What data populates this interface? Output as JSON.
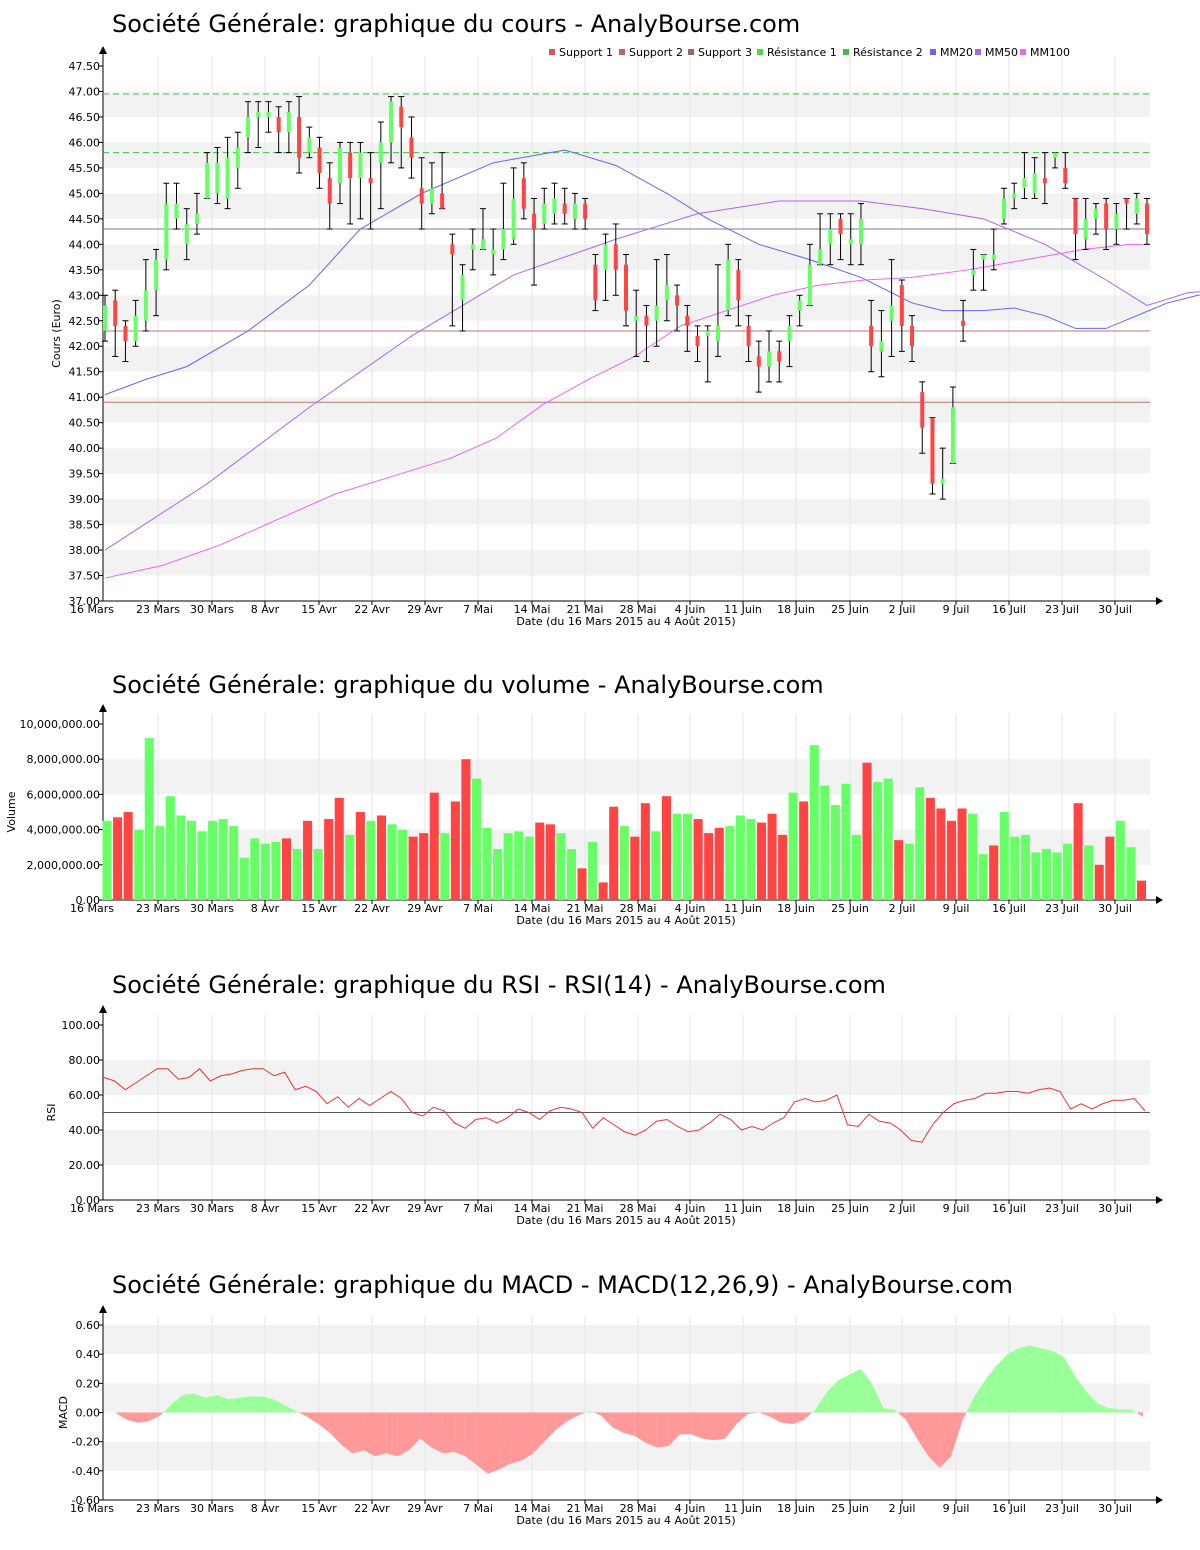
{
  "charts_meta": {
    "axis_xlabel": "Date (du 16 Mars 2015 au 4 Août 2015)",
    "date_ticks": [
      "16 Mars",
      "23 Mars",
      "30 Mars",
      "8 Avr",
      "15 Avr",
      "22 Avr",
      "29 Avr",
      "7 Mai",
      "14 Mai",
      "21 Mai",
      "28 Mai",
      "4 Juin",
      "11 Juin",
      "18 Juin",
      "25 Juin",
      "2 Juil",
      "9 Juil",
      "16 Juil",
      "23 Juil",
      "30 Juil"
    ],
    "up_color": "#66ff66",
    "down_color": "#ff4444"
  },
  "chart_data": [
    {
      "type": "candlestick",
      "title": "Société Générale: graphique du cours - AnalyBourse.com",
      "ylabel": "Cours (Euro)",
      "xlabel": "Date (du 16 Mars 2015 au 4 Août 2015)",
      "ylim": [
        37.0,
        47.5
      ],
      "yticks": [
        "37.00",
        "37.50",
        "38.00",
        "38.50",
        "39.00",
        "39.50",
        "40.00",
        "40.50",
        "41.00",
        "41.50",
        "42.00",
        "42.50",
        "43.00",
        "43.50",
        "44.00",
        "44.50",
        "45.00",
        "45.50",
        "46.00",
        "46.50",
        "47.00",
        "47.50"
      ],
      "legend": [
        "Support 1",
        "Support 2",
        "Support 3",
        "Résistance 1",
        "Résistance 2",
        "MM20",
        "MM50",
        "MM100"
      ],
      "legend_colors": [
        "#dd5555",
        "#bb6666",
        "#996666",
        "#44dd44",
        "#44bb44",
        "#6666ee",
        "#aa66ee",
        "#ee66ee"
      ],
      "levels": {
        "support1": 42.3,
        "support2": 40.9,
        "resistance1": 44.3,
        "resistance2": 45.8,
        "resistance3": 46.95
      },
      "candles": [
        [
          42.3,
          42.8,
          43.0,
          42.1
        ],
        [
          42.9,
          42.4,
          43.1,
          41.8
        ],
        [
          42.4,
          42.1,
          42.5,
          41.7
        ],
        [
          42.1,
          42.6,
          42.9,
          42.0
        ],
        [
          42.5,
          43.1,
          43.7,
          42.3
        ],
        [
          43.1,
          43.7,
          43.9,
          42.6
        ],
        [
          43.7,
          44.8,
          45.2,
          43.5
        ],
        [
          44.5,
          44.8,
          45.2,
          44.3
        ],
        [
          44.0,
          44.4,
          44.7,
          43.7
        ],
        [
          44.4,
          44.6,
          45.0,
          44.2
        ],
        [
          44.9,
          45.6,
          45.8,
          44.9
        ],
        [
          45.0,
          45.6,
          45.9,
          44.8
        ],
        [
          44.9,
          45.7,
          46.1,
          44.7
        ],
        [
          45.5,
          45.9,
          46.2,
          45.1
        ],
        [
          46.1,
          46.5,
          46.8,
          45.8
        ],
        [
          46.5,
          46.6,
          46.8,
          45.9
        ],
        [
          46.5,
          46.6,
          46.8,
          46.2
        ],
        [
          46.5,
          46.2,
          46.7,
          45.8
        ],
        [
          46.2,
          46.6,
          46.8,
          45.8
        ],
        [
          46.5,
          45.7,
          46.9,
          45.4
        ],
        [
          45.8,
          46.1,
          46.3,
          45.7
        ],
        [
          45.9,
          45.4,
          46.1,
          45.1
        ],
        [
          45.3,
          44.8,
          45.6,
          44.3
        ],
        [
          45.2,
          45.9,
          46.0,
          44.8
        ],
        [
          45.8,
          45.3,
          46.0,
          44.4
        ],
        [
          45.3,
          45.8,
          46.0,
          44.5
        ],
        [
          45.3,
          45.2,
          45.8,
          44.3
        ],
        [
          45.6,
          46.0,
          46.4,
          44.7
        ],
        [
          46.0,
          46.8,
          46.9,
          45.6
        ],
        [
          46.7,
          46.3,
          46.9,
          45.5
        ],
        [
          46.1,
          45.7,
          46.5,
          45.3
        ],
        [
          45.1,
          44.8,
          45.7,
          44.3
        ],
        [
          44.8,
          45.1,
          45.6,
          44.6
        ],
        [
          45.0,
          44.7,
          45.8,
          44.7
        ],
        [
          44.0,
          43.8,
          44.2,
          42.4
        ],
        [
          42.9,
          43.4,
          43.6,
          42.3
        ],
        [
          43.9,
          44.0,
          44.3,
          43.5
        ],
        [
          43.9,
          44.1,
          44.7,
          43.9
        ],
        [
          43.8,
          43.9,
          44.3,
          43.4
        ],
        [
          43.9,
          44.3,
          45.2,
          43.7
        ],
        [
          44.1,
          44.9,
          45.5,
          44.0
        ],
        [
          45.3,
          44.7,
          45.6,
          44.5
        ],
        [
          44.6,
          44.3,
          44.9,
          43.2
        ],
        [
          44.4,
          44.8,
          45.1,
          44.3
        ],
        [
          44.6,
          44.9,
          45.2,
          44.4
        ],
        [
          44.8,
          44.6,
          45.1,
          44.4
        ],
        [
          44.5,
          44.8,
          45.0,
          44.3
        ],
        [
          44.8,
          44.5,
          44.9,
          44.3
        ],
        [
          43.6,
          42.9,
          43.8,
          42.7
        ],
        [
          43.5,
          44.0,
          44.2,
          42.9
        ],
        [
          44.0,
          43.5,
          44.4,
          43.0
        ],
        [
          43.6,
          42.7,
          43.8,
          42.4
        ],
        [
          42.5,
          42.6,
          43.1,
          41.8
        ],
        [
          42.6,
          42.4,
          42.8,
          41.7
        ],
        [
          42.5,
          42.8,
          43.7,
          42.0
        ],
        [
          42.9,
          43.2,
          43.8,
          42.5
        ],
        [
          43.0,
          42.8,
          43.2,
          42.3
        ],
        [
          42.6,
          42.4,
          42.8,
          41.9
        ],
        [
          42.2,
          42.0,
          42.4,
          41.7
        ],
        [
          42.2,
          42.3,
          42.4,
          41.3
        ],
        [
          42.1,
          42.4,
          43.6,
          41.8
        ],
        [
          42.7,
          43.7,
          44.0,
          42.6
        ],
        [
          43.5,
          42.9,
          43.7,
          42.4
        ],
        [
          42.4,
          42.0,
          42.6,
          41.7
        ],
        [
          41.8,
          41.6,
          42.1,
          41.1
        ],
        [
          41.6,
          41.9,
          42.3,
          41.3
        ],
        [
          41.9,
          41.7,
          42.1,
          41.3
        ],
        [
          42.1,
          42.4,
          42.6,
          41.6
        ],
        [
          42.7,
          42.9,
          43.0,
          42.4
        ],
        [
          42.8,
          43.6,
          44.0,
          42.8
        ],
        [
          43.6,
          43.9,
          44.6,
          43.6
        ],
        [
          44.0,
          44.3,
          44.6,
          43.6
        ],
        [
          44.5,
          44.2,
          44.6,
          43.7
        ],
        [
          44.0,
          44.1,
          44.6,
          43.6
        ],
        [
          44.0,
          44.5,
          44.8,
          43.6
        ],
        [
          42.4,
          42.0,
          42.9,
          41.5
        ],
        [
          41.9,
          42.1,
          42.7,
          41.4
        ],
        [
          42.5,
          42.8,
          43.7,
          41.8
        ],
        [
          43.2,
          42.4,
          43.3,
          41.9
        ],
        [
          42.4,
          42.0,
          42.6,
          41.7
        ],
        [
          41.1,
          40.4,
          41.3,
          39.9
        ],
        [
          40.6,
          39.3,
          40.6,
          39.1
        ],
        [
          39.3,
          39.4,
          40.0,
          39.0
        ],
        [
          39.7,
          40.8,
          41.2,
          39.7
        ],
        [
          42.5,
          42.4,
          42.9,
          42.1
        ],
        [
          43.4,
          43.5,
          43.9,
          43.1
        ],
        [
          43.7,
          43.8,
          43.8,
          43.1
        ],
        [
          43.7,
          43.8,
          44.3,
          43.5
        ],
        [
          44.5,
          44.9,
          45.1,
          44.4
        ],
        [
          44.9,
          45.0,
          45.2,
          44.7
        ],
        [
          45.1,
          45.3,
          45.8,
          44.9
        ],
        [
          45.0,
          45.4,
          45.7,
          44.9
        ],
        [
          45.3,
          45.2,
          45.8,
          44.8
        ],
        [
          45.7,
          45.8,
          45.8,
          45.5
        ],
        [
          45.5,
          45.2,
          45.8,
          45.1
        ],
        [
          44.9,
          44.2,
          44.9,
          43.7
        ],
        [
          44.1,
          44.5,
          44.9,
          43.9
        ],
        [
          44.5,
          44.7,
          44.8,
          44.2
        ],
        [
          44.8,
          44.3,
          44.9,
          43.9
        ],
        [
          44.3,
          44.6,
          44.8,
          44.0
        ],
        [
          44.9,
          44.8,
          44.9,
          44.3
        ],
        [
          44.6,
          44.9,
          45.0,
          44.4
        ],
        [
          44.8,
          44.2,
          44.9,
          44.0
        ]
      ],
      "mm20": [
        [
          0,
          41.05
        ],
        [
          4,
          41.35
        ],
        [
          8,
          41.6
        ],
        [
          14,
          42.3
        ],
        [
          20,
          43.2
        ],
        [
          25,
          44.3
        ],
        [
          31,
          45.0
        ],
        [
          38,
          45.6
        ],
        [
          45,
          45.85
        ],
        [
          50,
          45.55
        ],
        [
          55,
          45.0
        ],
        [
          59,
          44.5
        ],
        [
          64,
          44.0
        ],
        [
          69,
          43.7
        ],
        [
          74,
          43.35
        ],
        [
          79,
          42.85
        ],
        [
          82,
          42.7
        ],
        [
          86,
          42.7
        ],
        [
          89,
          42.75
        ],
        [
          92,
          42.6
        ],
        [
          95,
          42.35
        ],
        [
          98,
          42.35
        ],
        [
          101,
          42.6
        ],
        [
          104,
          42.85
        ],
        [
          107,
          43.0
        ],
        [
          111,
          43.15
        ],
        [
          116,
          43.4
        ],
        [
          118,
          43.7
        ],
        [
          120,
          44.1
        ]
      ],
      "mm50": [
        [
          0,
          38.0
        ],
        [
          10,
          39.3
        ],
        [
          20,
          40.8
        ],
        [
          30,
          42.2
        ],
        [
          40,
          43.4
        ],
        [
          50,
          44.1
        ],
        [
          58,
          44.6
        ],
        [
          66,
          44.85
        ],
        [
          74,
          44.85
        ],
        [
          80,
          44.7
        ],
        [
          86,
          44.5
        ],
        [
          92,
          44.0
        ],
        [
          98,
          43.3
        ],
        [
          102,
          42.8
        ],
        [
          106,
          43.05
        ],
        [
          112,
          43.15
        ],
        [
          118,
          43.2
        ],
        [
          121,
          43.2
        ]
      ],
      "mm100": [
        [
          0,
          37.45
        ],
        [
          10,
          37.7
        ],
        [
          20,
          38.1
        ],
        [
          30,
          38.6
        ],
        [
          40,
          39.1
        ],
        [
          50,
          39.45
        ],
        [
          60,
          39.8
        ],
        [
          68,
          40.2
        ],
        [
          76,
          40.85
        ],
        [
          84,
          41.35
        ],
        [
          92,
          41.8
        ],
        [
          100,
          42.4
        ],
        [
          108,
          42.7
        ],
        [
          116,
          43.0
        ],
        [
          124,
          43.2
        ],
        [
          132,
          43.3
        ],
        [
          140,
          43.35
        ],
        [
          150,
          43.5
        ],
        [
          160,
          43.7
        ],
        [
          170,
          43.9
        ],
        [
          178,
          44.0
        ],
        [
          181,
          44.0
        ]
      ]
    },
    {
      "type": "bar",
      "title": "Société Générale: graphique du volume - AnalyBourse.com",
      "ylabel": "Volume",
      "xlabel": "Date (du 16 Mars 2015 au 4 Août 2015)",
      "ylim": [
        0,
        10000000
      ],
      "yticks": [
        "0.00",
        "2,000,000.00",
        "4,000,000.00",
        "6,000,000.00",
        "8,000,000.00",
        "10,000,000.00"
      ],
      "values": [
        4.5,
        4.7,
        5.0,
        4.0,
        9.2,
        4.2,
        5.9,
        4.8,
        4.5,
        3.9,
        4.5,
        4.6,
        4.2,
        2.4,
        3.5,
        3.2,
        3.3,
        3.5,
        2.9,
        4.5,
        2.9,
        4.6,
        5.8,
        3.7,
        5.0,
        4.5,
        4.8,
        4.3,
        4.0,
        3.6,
        3.8,
        6.1,
        3.8,
        5.6,
        8.0,
        6.9,
        4.1,
        2.9,
        3.8,
        3.9,
        3.6,
        4.4,
        4.3,
        3.8,
        2.9,
        1.8,
        3.3,
        1.0,
        5.3,
        4.2,
        3.6,
        5.5,
        3.9,
        5.9,
        4.9,
        4.9,
        4.6,
        3.8,
        4.1,
        4.2,
        4.8,
        4.6,
        4.4,
        4.9,
        3.7,
        6.1,
        5.6,
        8.8,
        6.5,
        5.4,
        6.6,
        3.7,
        7.8,
        6.7,
        6.9,
        3.4,
        3.2,
        6.4,
        5.8,
        5.2,
        4.5,
        5.2,
        4.9,
        2.6,
        3.1,
        5.0,
        3.6,
        3.7,
        2.7,
        2.9,
        2.7,
        3.2,
        5.5,
        3.1,
        2.0,
        3.6,
        4.5,
        3.0,
        1.1
      ],
      "colors": "up=green,down=red"
    },
    {
      "type": "line",
      "title": "Société Générale: graphique du RSI - RSI(14) - AnalyBourse.com",
      "ylabel": "RSI",
      "xlabel": "Date (du 16 Mars 2015 au 4 Août 2015)",
      "ylim": [
        0,
        100
      ],
      "yticks": [
        "0.00",
        "20.00",
        "40.00",
        "60.00",
        "80.00",
        "100.00"
      ],
      "reference_line": 50,
      "values": [
        70,
        68,
        63,
        67,
        71,
        75,
        75,
        69,
        70,
        75,
        68,
        71,
        72,
        74,
        75,
        75,
        71,
        73,
        63,
        65,
        62,
        55,
        59,
        53,
        58,
        54,
        58,
        62,
        58,
        50,
        48,
        53,
        51,
        44,
        41,
        46,
        47,
        44,
        47,
        52,
        50,
        46,
        51,
        53,
        52,
        50,
        41,
        47,
        43,
        39,
        37,
        40,
        45,
        46,
        42,
        39,
        40,
        44,
        49,
        46,
        40,
        42,
        40,
        44,
        47,
        56,
        58,
        56,
        57,
        60,
        43,
        42,
        49,
        45,
        44,
        40,
        34,
        33,
        43,
        50,
        55,
        57,
        58,
        61,
        61,
        62,
        62,
        61,
        63,
        64,
        62,
        52,
        55,
        52,
        55,
        57,
        57,
        58,
        51
      ]
    },
    {
      "type": "area",
      "title": "Société Générale: graphique du MACD - MACD(12,26,9) - AnalyBourse.com",
      "ylabel": "MACD",
      "xlabel": "Date (du 16 Mars 2015 au 4 Août 2015)",
      "ylim": [
        -0.6,
        0.6
      ],
      "yticks": [
        "-0.60",
        "-0.40",
        "-0.20",
        "0.00",
        "0.20",
        "0.40",
        "0.60"
      ],
      "values": [
        0,
        0,
        -0.05,
        -0.07,
        -0.06,
        -0.02,
        0.06,
        0.12,
        0.13,
        0.1,
        0.12,
        0.09,
        0.1,
        0.11,
        0.11,
        0.09,
        0.05,
        0.01,
        -0.03,
        -0.08,
        -0.14,
        -0.22,
        -0.28,
        -0.26,
        -0.3,
        -0.28,
        -0.3,
        -0.26,
        -0.18,
        -0.24,
        -0.28,
        -0.27,
        -0.3,
        -0.36,
        -0.42,
        -0.39,
        -0.35,
        -0.33,
        -0.28,
        -0.2,
        -0.12,
        -0.06,
        -0.02,
        0.01,
        -0.02,
        -0.1,
        -0.14,
        -0.16,
        -0.21,
        -0.24,
        -0.23,
        -0.15,
        -0.15,
        -0.18,
        -0.19,
        -0.18,
        -0.08,
        -0.01,
        0.0,
        -0.03,
        -0.07,
        -0.08,
        -0.05,
        0.02,
        0.14,
        0.22,
        0.26,
        0.3,
        0.2,
        0.03,
        0.02,
        -0.05,
        -0.18,
        -0.3,
        -0.38,
        -0.3,
        -0.06,
        0.1,
        0.22,
        0.32,
        0.4,
        0.44,
        0.46,
        0.44,
        0.42,
        0.38,
        0.25,
        0.14,
        0.06,
        0.03,
        0.02,
        0.02,
        -0.03
      ]
    }
  ]
}
